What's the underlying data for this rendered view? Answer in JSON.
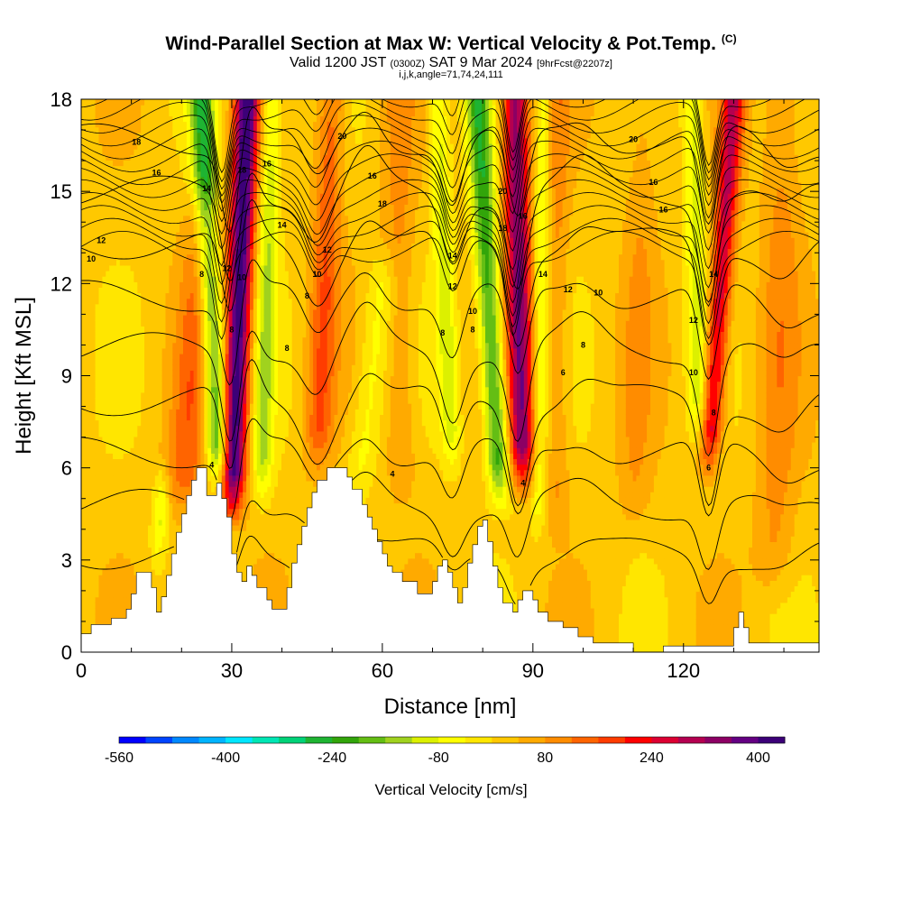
{
  "title": {
    "main": "Wind-Parallel Section at Max W: Vertical Velocity & Pot.Temp.",
    "copyright": "(C)",
    "valid_prefix": "Valid 1200 JST",
    "valid_zulu": "(0300Z)",
    "valid_date": "SAT 9 Mar 2024",
    "forecast_info": "[9hrFcst@2207z]",
    "indices": "i,j,k,angle=71,74,24,111"
  },
  "chart_data": {
    "type": "heatmap",
    "xlabel": "Distance [nm]",
    "ylabel": "Height [Kft MSL]",
    "xlim": [
      0,
      147
    ],
    "ylim": [
      0,
      18
    ],
    "x_ticks": [
      "0",
      "30",
      "60",
      "90",
      "120"
    ],
    "y_ticks": [
      "0",
      "3",
      "6",
      "9",
      "12",
      "15",
      "18"
    ],
    "colorbar": {
      "label": "Vertical Velocity [cm/s]",
      "min": -560,
      "max": 440,
      "tick_labels": [
        "-560",
        "-400",
        "-240",
        "-80",
        "80",
        "240",
        "400"
      ],
      "colors": [
        "#0000ff",
        "#0044ff",
        "#0088ff",
        "#00b4ff",
        "#00e6ff",
        "#00e6b4",
        "#00d278",
        "#1eb432",
        "#32a50a",
        "#64be14",
        "#a0d21e",
        "#dcf000",
        "#ffff00",
        "#ffe600",
        "#ffc800",
        "#ffaa00",
        "#ff8c00",
        "#ff6400",
        "#ff3c00",
        "#ff0000",
        "#dc0032",
        "#b40050",
        "#8c0064",
        "#640082",
        "#3c0078"
      ]
    },
    "terrain_kft": [
      [
        0,
        0.6
      ],
      [
        2,
        0.6
      ],
      [
        2,
        0.9
      ],
      [
        6,
        0.9
      ],
      [
        6,
        1.1
      ],
      [
        9,
        1.1
      ],
      [
        9,
        1.4
      ],
      [
        10,
        1.4
      ],
      [
        10,
        1.9
      ],
      [
        11,
        1.9
      ],
      [
        11,
        2.6
      ],
      [
        14,
        2.6
      ],
      [
        14,
        2.1
      ],
      [
        15,
        2.1
      ],
      [
        15,
        1.3
      ],
      [
        16,
        1.3
      ],
      [
        16,
        1.8
      ],
      [
        17,
        1.8
      ],
      [
        17,
        2.5
      ],
      [
        18,
        2.5
      ],
      [
        18,
        3.2
      ],
      [
        19,
        3.2
      ],
      [
        19,
        3.9
      ],
      [
        20,
        3.9
      ],
      [
        20,
        4.5
      ],
      [
        21,
        4.5
      ],
      [
        21,
        5.1
      ],
      [
        22,
        5.1
      ],
      [
        22,
        5.6
      ],
      [
        23,
        5.6
      ],
      [
        23,
        6.0
      ],
      [
        25,
        6.0
      ],
      [
        25,
        5.1
      ],
      [
        27,
        5.1
      ],
      [
        27,
        5.5
      ],
      [
        28,
        5.5
      ],
      [
        28,
        5.0
      ],
      [
        29,
        5.0
      ],
      [
        29,
        4.4
      ],
      [
        30,
        4.4
      ],
      [
        30,
        3.2
      ],
      [
        31,
        3.2
      ],
      [
        31,
        2.6
      ],
      [
        32,
        2.6
      ],
      [
        32,
        2.3
      ],
      [
        33,
        2.3
      ],
      [
        33,
        2.8
      ],
      [
        34,
        2.8
      ],
      [
        34,
        2.5
      ],
      [
        35,
        2.5
      ],
      [
        35,
        2.1
      ],
      [
        37,
        2.1
      ],
      [
        37,
        1.7
      ],
      [
        38,
        1.7
      ],
      [
        38,
        1.4
      ],
      [
        41,
        1.4
      ],
      [
        41,
        2.1
      ],
      [
        42,
        2.1
      ],
      [
        42,
        2.9
      ],
      [
        43,
        2.9
      ],
      [
        43,
        3.5
      ],
      [
        44,
        3.5
      ],
      [
        44,
        4.1
      ],
      [
        45,
        4.1
      ],
      [
        45,
        4.7
      ],
      [
        46,
        4.7
      ],
      [
        46,
        5.2
      ],
      [
        47,
        5.2
      ],
      [
        47,
        5.6
      ],
      [
        49,
        5.6
      ],
      [
        49,
        6.0
      ],
      [
        53,
        6.0
      ],
      [
        53,
        5.7
      ],
      [
        54,
        5.7
      ],
      [
        54,
        5.3
      ],
      [
        56,
        5.3
      ],
      [
        56,
        4.8
      ],
      [
        57,
        4.8
      ],
      [
        57,
        4.4
      ],
      [
        58,
        4.4
      ],
      [
        58,
        4.0
      ],
      [
        59,
        4.0
      ],
      [
        59,
        3.6
      ],
      [
        60,
        3.6
      ],
      [
        60,
        3.2
      ],
      [
        61,
        3.2
      ],
      [
        61,
        2.8
      ],
      [
        62,
        2.8
      ],
      [
        62,
        2.6
      ],
      [
        64,
        2.6
      ],
      [
        64,
        2.3
      ],
      [
        67,
        2.3
      ],
      [
        67,
        1.9
      ],
      [
        70,
        1.9
      ],
      [
        70,
        2.3
      ],
      [
        71,
        2.3
      ],
      [
        71,
        2.8
      ],
      [
        72,
        2.8
      ],
      [
        72,
        3.0
      ],
      [
        73,
        3.0
      ],
      [
        73,
        2.6
      ],
      [
        74,
        2.6
      ],
      [
        74,
        2.1
      ],
      [
        75,
        2.1
      ],
      [
        75,
        1.6
      ],
      [
        76,
        1.6
      ],
      [
        76,
        2.1
      ],
      [
        77,
        2.1
      ],
      [
        77,
        2.9
      ],
      [
        78,
        2.9
      ],
      [
        78,
        3.5
      ],
      [
        79,
        3.5
      ],
      [
        79,
        4.1
      ],
      [
        80,
        4.1
      ],
      [
        80,
        4.3
      ],
      [
        81,
        4.3
      ],
      [
        81,
        3.6
      ],
      [
        82,
        3.6
      ],
      [
        82,
        2.8
      ],
      [
        83,
        2.8
      ],
      [
        83,
        2.1
      ],
      [
        84,
        2.1
      ],
      [
        84,
        1.6
      ],
      [
        86,
        1.6
      ],
      [
        86,
        1.3
      ],
      [
        87,
        1.3
      ],
      [
        87,
        1.7
      ],
      [
        88,
        1.7
      ],
      [
        88,
        2.0
      ],
      [
        90,
        2.0
      ],
      [
        90,
        1.7
      ],
      [
        91,
        1.7
      ],
      [
        91,
        1.3
      ],
      [
        93,
        1.3
      ],
      [
        93,
        1.0
      ],
      [
        96,
        1.0
      ],
      [
        96,
        0.8
      ],
      [
        99,
        0.8
      ],
      [
        99,
        0.5
      ],
      [
        102,
        0.5
      ],
      [
        102,
        0.3
      ],
      [
        110,
        0.3
      ],
      [
        110,
        0.0
      ],
      [
        116,
        0.0
      ],
      [
        116,
        0.2
      ],
      [
        130,
        0.2
      ],
      [
        130,
        0.8
      ],
      [
        131,
        0.8
      ],
      [
        131,
        1.3
      ],
      [
        132,
        1.3
      ],
      [
        132,
        0.8
      ],
      [
        133,
        0.8
      ],
      [
        133,
        0.3
      ],
      [
        147,
        0.3
      ]
    ],
    "updraft_cores": [
      {
        "x_base": 30.0,
        "z_base": 4.6,
        "x_top": 33.0,
        "z_top": 18.0,
        "width_nm": 3.0,
        "peak_cm_s": 420
      },
      {
        "x_base": 88.0,
        "z_base": 5.5,
        "x_top": 86.5,
        "z_top": 18.0,
        "width_nm": 3.2,
        "peak_cm_s": 330
      },
      {
        "x_base": 125.0,
        "z_base": 6.0,
        "x_top": 130.0,
        "z_top": 18.0,
        "width_nm": 2.8,
        "peak_cm_s": 260
      },
      {
        "x_base": 47.0,
        "z_base": 6.0,
        "x_top": 50.0,
        "z_top": 18.0,
        "width_nm": 3.5,
        "peak_cm_s": 130
      },
      {
        "x_base": 20.0,
        "z_base": 4.5,
        "x_top": 25.0,
        "z_top": 14.0,
        "width_nm": 5.0,
        "peak_cm_s": 110
      },
      {
        "x_base": 64.0,
        "z_base": 5.0,
        "x_top": 63.0,
        "z_top": 18.0,
        "width_nm": 4.0,
        "peak_cm_s": 70
      },
      {
        "x_base": 95.0,
        "z_base": 4.0,
        "x_top": 95.0,
        "z_top": 18.0,
        "width_nm": 3.0,
        "peak_cm_s": 70
      },
      {
        "x_base": 110.0,
        "z_base": 4.0,
        "x_top": 112.0,
        "z_top": 18.0,
        "width_nm": 4.0,
        "peak_cm_s": 50
      },
      {
        "x_base": 138.0,
        "z_base": 2.0,
        "x_top": 140.0,
        "z_top": 18.0,
        "width_nm": 5.0,
        "peak_cm_s": 70
      }
    ],
    "downdraft_cores": [
      {
        "x_base": 27.5,
        "z_base": 5.5,
        "x_top": 24.0,
        "z_top": 18.0,
        "width_nm": 3.0,
        "peak_cm_s": -260
      },
      {
        "x_base": 83.5,
        "z_base": 5.0,
        "x_top": 79.0,
        "z_top": 18.0,
        "width_nm": 3.0,
        "peak_cm_s": -250
      },
      {
        "x_base": 36.0,
        "z_base": 5.0,
        "x_top": 38.0,
        "z_top": 18.0,
        "width_nm": 2.5,
        "peak_cm_s": -130
      },
      {
        "x_base": 15.0,
        "z_base": 3.0,
        "x_top": 16.0,
        "z_top": 5.0,
        "width_nm": 2.0,
        "peak_cm_s": -110
      },
      {
        "x_base": 55.0,
        "z_base": 5.0,
        "x_top": 60.0,
        "z_top": 12.0,
        "width_nm": 4.0,
        "peak_cm_s": -80
      },
      {
        "x_base": 74.0,
        "z_base": 6.0,
        "x_top": 71.0,
        "z_top": 18.0,
        "width_nm": 2.5,
        "peak_cm_s": -120
      },
      {
        "x_base": 91.0,
        "z_base": 4.0,
        "x_top": 92.0,
        "z_top": 18.0,
        "width_nm": 2.0,
        "peak_cm_s": -100
      },
      {
        "x_base": 123.0,
        "z_base": 7.0,
        "x_top": 122.0,
        "z_top": 18.0,
        "width_nm": 2.5,
        "peak_cm_s": -120
      }
    ],
    "isentrope_levels": [
      4,
      6,
      8,
      10,
      12,
      14,
      16,
      18,
      20
    ],
    "isentrope_labels": [
      {
        "text": "18",
        "x": 11,
        "z": 16.6
      },
      {
        "text": "16",
        "x": 15,
        "z": 15.6
      },
      {
        "text": "12",
        "x": 4,
        "z": 13.4
      },
      {
        "text": "10",
        "x": 2,
        "z": 12.8
      },
      {
        "text": "14",
        "x": 25,
        "z": 15.1
      },
      {
        "text": "18",
        "x": 32,
        "z": 15.7
      },
      {
        "text": "16",
        "x": 37,
        "z": 15.9
      },
      {
        "text": "14",
        "x": 40,
        "z": 13.9
      },
      {
        "text": "12",
        "x": 29,
        "z": 12.5
      },
      {
        "text": "10",
        "x": 32,
        "z": 12.2
      },
      {
        "text": "8",
        "x": 24,
        "z": 12.3
      },
      {
        "text": "8",
        "x": 30,
        "z": 10.5
      },
      {
        "text": "8",
        "x": 41,
        "z": 9.9
      },
      {
        "text": "20",
        "x": 52,
        "z": 16.8
      },
      {
        "text": "16",
        "x": 58,
        "z": 15.5
      },
      {
        "text": "18",
        "x": 60,
        "z": 14.6
      },
      {
        "text": "12",
        "x": 49,
        "z": 13.1
      },
      {
        "text": "10",
        "x": 47,
        "z": 12.3
      },
      {
        "text": "8",
        "x": 45,
        "z": 11.6
      },
      {
        "text": "14",
        "x": 74,
        "z": 12.9
      },
      {
        "text": "12",
        "x": 74,
        "z": 11.9
      },
      {
        "text": "10",
        "x": 78,
        "z": 11.1
      },
      {
        "text": "8",
        "x": 72,
        "z": 10.4
      },
      {
        "text": "8",
        "x": 78,
        "z": 10.5
      },
      {
        "text": "20",
        "x": 84,
        "z": 15.0
      },
      {
        "text": "18",
        "x": 84,
        "z": 13.8
      },
      {
        "text": "16",
        "x": 88,
        "z": 14.2
      },
      {
        "text": "14",
        "x": 92,
        "z": 12.3
      },
      {
        "text": "12",
        "x": 97,
        "z": 11.8
      },
      {
        "text": "10",
        "x": 103,
        "z": 11.7
      },
      {
        "text": "8",
        "x": 100,
        "z": 10.0
      },
      {
        "text": "6",
        "x": 96,
        "z": 9.1
      },
      {
        "text": "20",
        "x": 110,
        "z": 16.7
      },
      {
        "text": "16",
        "x": 114,
        "z": 15.3
      },
      {
        "text": "16",
        "x": 116,
        "z": 14.4
      },
      {
        "text": "14",
        "x": 126,
        "z": 12.3
      },
      {
        "text": "12",
        "x": 122,
        "z": 10.8
      },
      {
        "text": "10",
        "x": 122,
        "z": 9.1
      },
      {
        "text": "8",
        "x": 126,
        "z": 7.8
      },
      {
        "text": "6",
        "x": 125,
        "z": 6.0
      },
      {
        "text": "4",
        "x": 26,
        "z": 6.1
      },
      {
        "text": "4",
        "x": 62,
        "z": 5.8
      },
      {
        "text": "4",
        "x": 88,
        "z": 5.5
      }
    ]
  }
}
